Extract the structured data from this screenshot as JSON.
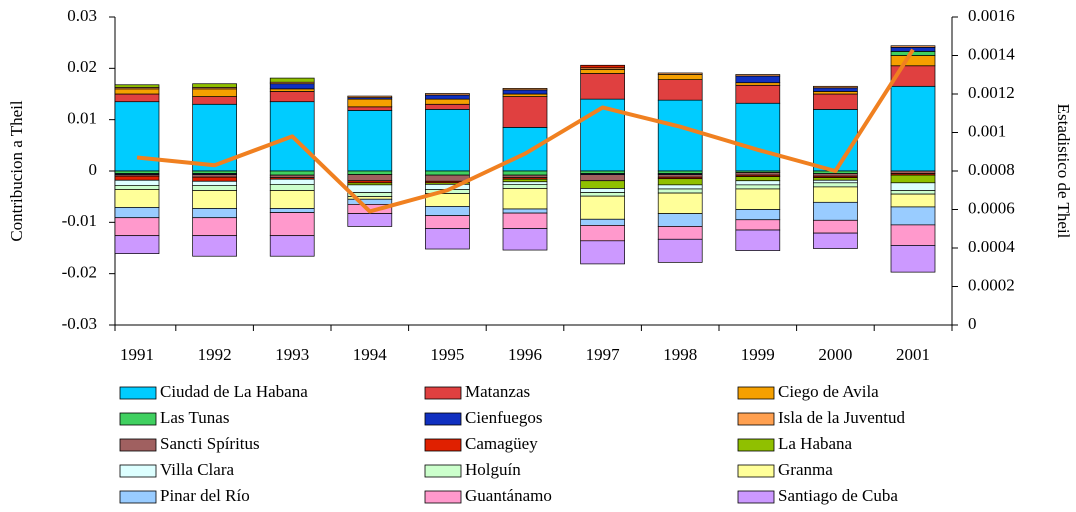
{
  "chart_data": {
    "type": "bar",
    "stacked": true,
    "ylabel": "Contribucion a Theil",
    "y2label": "Estadistico de Theil",
    "categories": [
      "1991",
      "1992",
      "1993",
      "1994",
      "1995",
      "1996",
      "1997",
      "1998",
      "1999",
      "2000",
      "2001"
    ],
    "ylim": [
      -0.03,
      0.03
    ],
    "yticks": [
      -0.03,
      -0.02,
      -0.01,
      0,
      0.01,
      0.02,
      0.03
    ],
    "y2lim": [
      0,
      0.0016
    ],
    "y2ticks": [
      0,
      0.0002,
      0.0004,
      0.0006,
      0.0008,
      0.001,
      0.0012,
      0.0014,
      0.0016
    ],
    "series": [
      {
        "name": "Ciudad de La Habana",
        "color": "#00ccff",
        "values": [
          0.0135,
          0.013,
          0.0135,
          0.0118,
          0.012,
          0.0085,
          0.014,
          0.0138,
          0.0132,
          0.012,
          0.0165
        ]
      },
      {
        "name": "Matanzas",
        "color": "#e04040",
        "values": [
          0.0015,
          0.0015,
          0.002,
          0.0007,
          0.001,
          0.006,
          0.005,
          0.004,
          0.0035,
          0.003,
          0.004
        ]
      },
      {
        "name": "Ciego de Avila",
        "color": "#f5a000",
        "values": [
          0.001,
          0.0015,
          0.0005,
          0.0015,
          0.001,
          0.0005,
          0.0008,
          0.001,
          0.0005,
          0.0005,
          0.002
        ]
      },
      {
        "name": "Las Tunas",
        "color": "#40d060",
        "values": [
          -0.0005,
          -0.0005,
          -0.0008,
          -0.0007,
          -0.0008,
          -0.0008,
          -0.0005,
          -0.0005,
          -0.0003,
          -0.0005,
          0.0008
        ]
      },
      {
        "name": "Cienfuegos",
        "color": "#1030c0",
        "values": [
          -0.0002,
          -0.0002,
          0.001,
          0.0003,
          0.0008,
          0.0008,
          -0.0002,
          -0.0002,
          0.0013,
          0.0007,
          0.0008
        ]
      },
      {
        "name": "Isla de la Juventud",
        "color": "#ffa050",
        "values": [
          0.0003,
          0.0003,
          0.0003,
          0.0003,
          0.0003,
          0.0003,
          0.0003,
          0.0003,
          0.0003,
          0.0003,
          0.0003
        ]
      },
      {
        "name": "Sancti Spíritus",
        "color": "#a06060",
        "values": [
          -0.0003,
          -0.0005,
          -0.0005,
          -0.0012,
          -0.0012,
          -0.0005,
          -0.0012,
          -0.0005,
          -0.0005,
          -0.0005,
          -0.0005
        ]
      },
      {
        "name": "Camagüey",
        "color": "#e02000",
        "values": [
          -0.0008,
          -0.0008,
          -0.0003,
          -0.0004,
          -0.0003,
          -0.0003,
          0.0005,
          -0.0003,
          -0.0003,
          -0.0003,
          -0.0003
        ]
      },
      {
        "name": "La Habana",
        "color": "#90c000",
        "values": [
          0.0005,
          0.0007,
          0.0008,
          -0.0004,
          -0.0003,
          -0.0005,
          -0.0015,
          -0.0012,
          -0.0008,
          -0.0005,
          -0.0015
        ]
      },
      {
        "name": "Villa Clara",
        "color": "#ddffff",
        "values": [
          -0.001,
          -0.0008,
          -0.001,
          -0.0015,
          -0.001,
          -0.0005,
          -0.0008,
          -0.0008,
          -0.0008,
          -0.0005,
          -0.0015
        ]
      },
      {
        "name": "Holguín",
        "color": "#ccffcc",
        "values": [
          -0.0008,
          -0.001,
          -0.0012,
          -0.0008,
          -0.0008,
          -0.0008,
          -0.0007,
          -0.0008,
          -0.0008,
          -0.0008,
          -0.0007
        ]
      },
      {
        "name": "Granma",
        "color": "#ffff99",
        "values": [
          -0.0035,
          -0.0035,
          -0.0035,
          -0.0005,
          -0.0025,
          -0.004,
          -0.0045,
          -0.004,
          -0.004,
          -0.003,
          -0.0025
        ]
      },
      {
        "name": "Pinar del Río",
        "color": "#99ccff",
        "values": [
          -0.002,
          -0.0018,
          -0.0008,
          -0.001,
          -0.0018,
          -0.0008,
          -0.0012,
          -0.0025,
          -0.002,
          -0.0035,
          -0.0035
        ]
      },
      {
        "name": "Guantánamo",
        "color": "#ff99cc",
        "values": [
          -0.0035,
          -0.0035,
          -0.0045,
          -0.0018,
          -0.0025,
          -0.003,
          -0.003,
          -0.0025,
          -0.002,
          -0.0025,
          -0.004
        ]
      },
      {
        "name": "Santiago de Cuba",
        "color": "#cc99ff",
        "values": [
          -0.0035,
          -0.004,
          -0.004,
          -0.0025,
          -0.004,
          -0.0042,
          -0.0045,
          -0.0045,
          -0.004,
          -0.003,
          -0.0052
        ]
      }
    ],
    "line": {
      "color": "#f08020",
      "axis": "y2",
      "values": [
        0.00087,
        0.00083,
        0.00098,
        0.00059,
        0.0007,
        0.00089,
        0.00113,
        0.00103,
        0.00091,
        0.0008,
        0.00143
      ]
    }
  }
}
